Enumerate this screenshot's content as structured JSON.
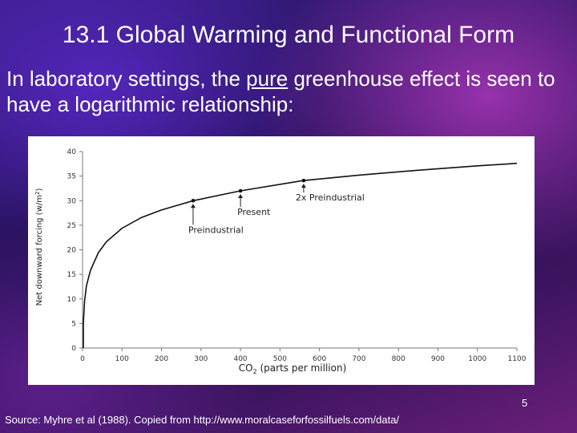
{
  "slide": {
    "title": "13.1 Global Warming and Functional Form",
    "subtitle_before": "In laboratory settings, the ",
    "subtitle_underlined": "pure",
    "subtitle_after": " greenhouse effect is seen to have a logarithmic relationship:",
    "slide_number": "5",
    "source": "Source: Myhre et al (1988).  Copied from http://www.moralcaseforfossilfuels.com/data/"
  },
  "colors": {
    "background": "#2a1560",
    "text": "#ffffff",
    "curve": "#111111"
  },
  "chart_data": {
    "type": "line",
    "title": "",
    "xlabel": "CO",
    "xlabel_sub": "2",
    "xlabel_rest": " (parts per million)",
    "ylabel": "Net downward forcing (w/m",
    "ylabel_sup": "2",
    "ylabel_end": ")",
    "xlim": [
      0,
      1100
    ],
    "ylim": [
      0,
      40
    ],
    "xticks": [
      0,
      100,
      200,
      300,
      400,
      500,
      600,
      700,
      800,
      900,
      1000,
      1100
    ],
    "yticks": [
      0,
      5,
      10,
      15,
      20,
      25,
      30,
      35,
      40
    ],
    "grid": false,
    "series": [
      {
        "x": [
          2,
          5,
          10,
          20,
          40,
          60,
          100,
          150,
          200,
          280,
          400,
          560,
          700,
          850,
          1000,
          1100
        ],
        "y": [
          5,
          9.5,
          12.7,
          15.8,
          19.4,
          21.6,
          24.4,
          26.6,
          28.1,
          30.0,
          32.0,
          34.1,
          35.2,
          36.2,
          37.1,
          37.6
        ]
      }
    ],
    "annotations": [
      {
        "label": "Preindustrial",
        "x": 280,
        "y": 30.0
      },
      {
        "label": "Present",
        "x": 400,
        "y": 32.0
      },
      {
        "label": "2x Preindustrial",
        "x": 560,
        "y": 34.1
      }
    ]
  }
}
